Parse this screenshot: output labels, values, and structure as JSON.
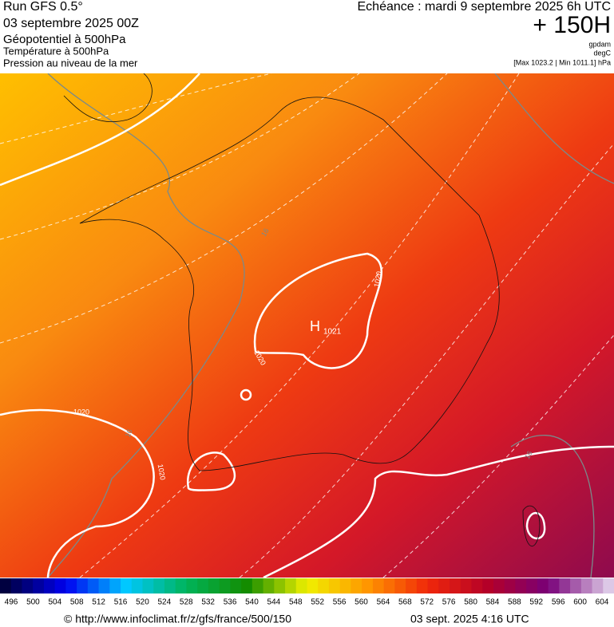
{
  "header": {
    "run": "Run GFS 0.5°",
    "date": "03 septembre 2025 00Z",
    "field1": "Géopotentiel à 500hPa",
    "field2": "Température à 500hPa",
    "field3": "Pression au niveau de la mer",
    "echeance": "Echéance : mardi 9 septembre 2025 6h UTC",
    "lead": "+ 150H",
    "unit1": "gpdam",
    "unit2": "degC",
    "range": "[Max 1023.2 | Min 1011.1] hPa"
  },
  "map": {
    "high": "H",
    "high_value": "1021",
    "isobar_labels": [
      "1020",
      "1020",
      "1020",
      "1020"
    ],
    "isotherm_labels": [
      "16",
      "16",
      "16"
    ]
  },
  "colorbar": {
    "labels": [
      496,
      500,
      504,
      508,
      512,
      516,
      520,
      524,
      528,
      532,
      536,
      540,
      544,
      548,
      552,
      556,
      560,
      564,
      568,
      572,
      576,
      580,
      584,
      588,
      592,
      596,
      600,
      604
    ]
  },
  "footer": {
    "url": "© http://www.infoclimat.fr/z/gfs/france/500/150",
    "timestamp": "03 sept. 2025  4:16 UTC"
  }
}
